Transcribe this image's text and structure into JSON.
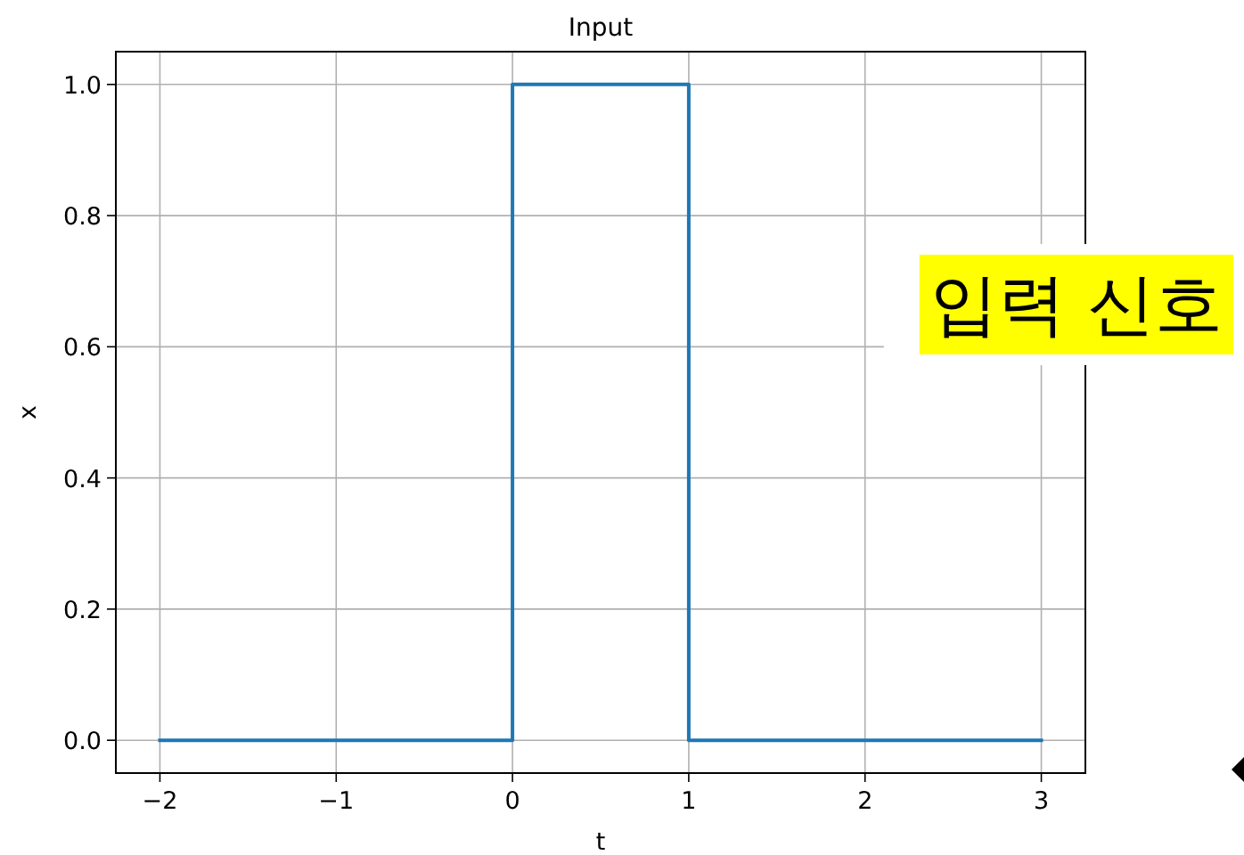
{
  "chart_data": {
    "type": "line",
    "title": "Input",
    "xlabel": "t",
    "ylabel": "x",
    "x": [
      -2,
      0,
      0,
      1,
      1,
      3
    ],
    "series": [
      {
        "color": "#1f77b4",
        "values": [
          0,
          0,
          1,
          1,
          0,
          0
        ]
      }
    ],
    "xlim": [
      -2.25,
      3.25
    ],
    "ylim": [
      -0.05,
      1.05
    ],
    "xticks": [
      {
        "value": -2,
        "label": "−2"
      },
      {
        "value": -1,
        "label": "−1"
      },
      0,
      1,
      2,
      3
    ],
    "yticks": [
      {
        "value": 0,
        "label": "0.0"
      },
      {
        "value": 0.2,
        "label": "0.2"
      },
      {
        "value": 0.4,
        "label": "0.4"
      },
      {
        "value": 0.6,
        "label": "0.6"
      },
      {
        "value": 0.8,
        "label": "0.8"
      },
      {
        "value": 1,
        "label": "1.0"
      }
    ],
    "grid": true,
    "annotations": [
      "입력 신호"
    ]
  }
}
